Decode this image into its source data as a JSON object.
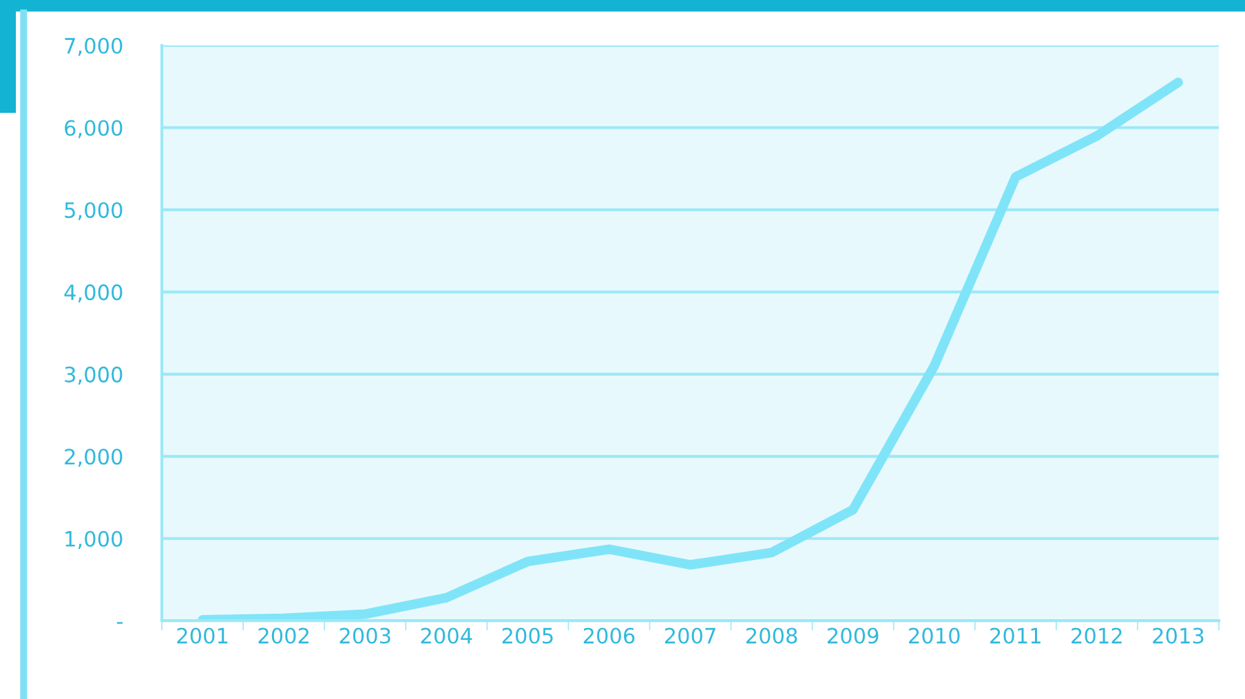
{
  "chart_data": {
    "type": "line",
    "categories": [
      "2001",
      "2002",
      "2003",
      "2004",
      "2005",
      "2006",
      "2007",
      "2008",
      "2009",
      "2010",
      "2011",
      "2012",
      "2013"
    ],
    "series": [
      {
        "color": "#80e4f8",
        "values": [
          10,
          30,
          80,
          280,
          720,
          870,
          680,
          830,
          1350,
          3100,
          5400,
          5900,
          6550
        ]
      }
    ],
    "ylim": [
      0,
      7000
    ],
    "yticks": [
      {
        "value": 0,
        "label": "-"
      },
      {
        "value": 1000,
        "label": "1,000"
      },
      {
        "value": 2000,
        "label": "2,000"
      },
      {
        "value": 3000,
        "label": "3,000"
      },
      {
        "value": 4000,
        "label": "4,000"
      },
      {
        "value": 5000,
        "label": "5,000"
      },
      {
        "value": 6000,
        "label": "6,000"
      },
      {
        "value": 7000,
        "label": "7,000"
      }
    ],
    "grid": "y",
    "legend": false,
    "marker": "none",
    "line_style": "solid"
  }
}
